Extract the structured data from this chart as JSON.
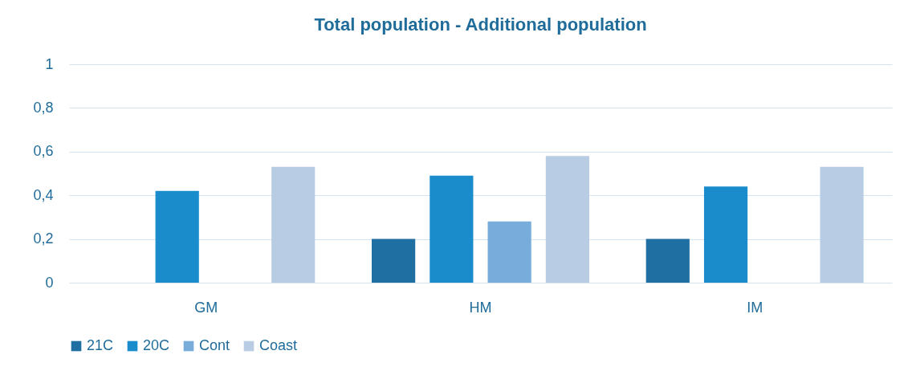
{
  "chart_data": {
    "type": "bar",
    "title": "Total population - Additional population",
    "categories": [
      "GM",
      "HM",
      "IM"
    ],
    "series": [
      {
        "name": "21C",
        "color": "#1f6fa3",
        "values": [
          null,
          0.2,
          0.2
        ]
      },
      {
        "name": "20C",
        "color": "#1a8ccc",
        "values": [
          0.42,
          0.49,
          0.44
        ]
      },
      {
        "name": "Cont",
        "color": "#78addb",
        "values": [
          null,
          0.28,
          null
        ]
      },
      {
        "name": "Coast",
        "color": "#b8cce3",
        "values": [
          0.53,
          0.58,
          0.53
        ]
      }
    ],
    "ylim": [
      0,
      1
    ],
    "yticks": [
      0,
      {
        "value": 0.2,
        "label": "0,2"
      },
      {
        "value": 0.4,
        "label": "0,4"
      },
      {
        "value": 0.6,
        "label": "0,6"
      },
      {
        "value": 0.8,
        "label": "0,8"
      },
      1
    ],
    "grid": "y",
    "legend": "bottom"
  }
}
